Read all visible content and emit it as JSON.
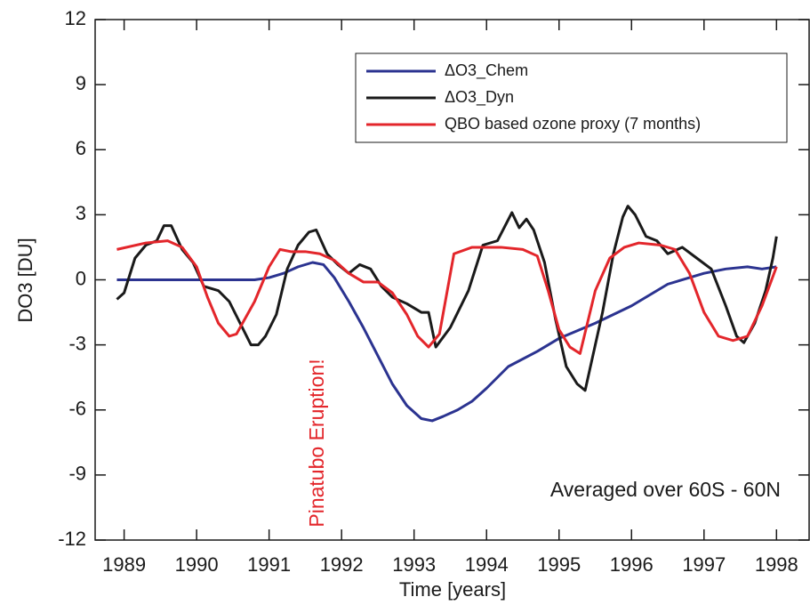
{
  "chart_data": {
    "type": "line",
    "xlabel": "Time [years]",
    "ylabel": "DO3 [DU]",
    "annotations": [
      "Pinatubo Eruption!",
      "Averaged over 60S - 60N"
    ],
    "xlim": [
      1988.6,
      1998.45
    ],
    "xticks": [
      1989,
      1990,
      1991,
      1992,
      1993,
      1994,
      1995,
      1996,
      1997,
      1998
    ],
    "ylim": [
      -12,
      12
    ],
    "yticks": [
      12,
      9,
      6,
      3,
      0,
      -3,
      -6,
      -9,
      -12
    ],
    "legend": "top right",
    "series": [
      {
        "name": "ΔO3_Chem",
        "color": "#2b3390",
        "x": [
          1988.9,
          1989.5,
          1990.0,
          1990.5,
          1990.8,
          1991.0,
          1991.2,
          1991.4,
          1991.6,
          1991.75,
          1991.9,
          1992.1,
          1992.3,
          1992.5,
          1992.7,
          1992.9,
          1993.1,
          1993.25,
          1993.4,
          1993.6,
          1993.8,
          1994.0,
          1994.3,
          1994.7,
          1995.0,
          1995.5,
          1996.0,
          1996.5,
          1997.0,
          1997.3,
          1997.6,
          1997.8,
          1998.0
        ],
        "values": [
          0,
          0,
          0,
          0,
          0,
          0.1,
          0.3,
          0.6,
          0.8,
          0.7,
          0.1,
          -1.0,
          -2.2,
          -3.5,
          -4.8,
          -5.8,
          -6.4,
          -6.5,
          -6.3,
          -6.0,
          -5.6,
          -5.0,
          -4.0,
          -3.3,
          -2.7,
          -2.0,
          -1.2,
          -0.2,
          0.3,
          0.5,
          0.6,
          0.5,
          0.6
        ]
      },
      {
        "name": "ΔO3_Dyn",
        "color": "#1a1a1a",
        "x": [
          1988.9,
          1989.0,
          1989.15,
          1989.3,
          1989.45,
          1989.55,
          1989.65,
          1989.8,
          1989.95,
          1990.1,
          1990.3,
          1990.45,
          1990.6,
          1990.75,
          1990.85,
          1990.95,
          1991.1,
          1991.25,
          1991.4,
          1991.55,
          1991.65,
          1991.8,
          1991.95,
          1992.1,
          1992.25,
          1992.4,
          1992.55,
          1992.7,
          1992.9,
          1993.1,
          1993.2,
          1993.3,
          1993.5,
          1993.75,
          1993.95,
          1994.15,
          1994.35,
          1994.45,
          1994.55,
          1994.65,
          1994.8,
          1994.95,
          1995.1,
          1995.25,
          1995.36,
          1995.6,
          1995.75,
          1995.88,
          1995.95,
          1996.05,
          1996.2,
          1996.35,
          1996.5,
          1996.7,
          1996.9,
          1997.1,
          1997.3,
          1997.45,
          1997.55,
          1997.7,
          1997.85,
          1997.95,
          1998.0
        ],
        "values": [
          -0.9,
          -0.6,
          1.0,
          1.6,
          1.8,
          2.5,
          2.5,
          1.4,
          0.8,
          -0.3,
          -0.5,
          -1.0,
          -2.0,
          -3.0,
          -3.0,
          -2.6,
          -1.6,
          0.5,
          1.6,
          2.2,
          2.3,
          1.2,
          0.7,
          0.3,
          0.7,
          0.5,
          -0.3,
          -0.8,
          -1.1,
          -1.5,
          -1.5,
          -3.1,
          -2.2,
          -0.5,
          1.6,
          1.8,
          3.1,
          2.4,
          2.8,
          2.3,
          0.8,
          -1.8,
          -4.0,
          -4.8,
          -5.1,
          -1.5,
          1.2,
          2.9,
          3.4,
          3.0,
          2.0,
          1.8,
          1.2,
          1.5,
          1.0,
          0.5,
          -1.2,
          -2.6,
          -2.9,
          -2.0,
          -0.5,
          1.0,
          2.0
        ]
      },
      {
        "name": "QBO based ozone proxy (7 months)",
        "color": "#e3262b",
        "x": [
          1988.9,
          1989.3,
          1989.6,
          1989.8,
          1990.0,
          1990.15,
          1990.3,
          1990.45,
          1990.55,
          1990.8,
          1991.0,
          1991.15,
          1991.3,
          1991.5,
          1991.7,
          1991.9,
          1992.1,
          1992.3,
          1992.5,
          1992.7,
          1992.9,
          1993.05,
          1993.2,
          1993.35,
          1993.55,
          1993.8,
          1994.2,
          1994.5,
          1994.7,
          1994.85,
          1995.0,
          1995.15,
          1995.29,
          1995.5,
          1995.7,
          1995.9,
          1996.1,
          1996.4,
          1996.6,
          1996.8,
          1997.0,
          1997.2,
          1997.4,
          1997.6,
          1997.8,
          1998.0
        ],
        "values": [
          1.4,
          1.7,
          1.8,
          1.5,
          0.6,
          -0.8,
          -2.0,
          -2.6,
          -2.5,
          -1.0,
          0.6,
          1.4,
          1.3,
          1.3,
          1.2,
          0.9,
          0.3,
          -0.1,
          -0.1,
          -0.6,
          -1.6,
          -2.6,
          -3.1,
          -2.5,
          1.2,
          1.5,
          1.5,
          1.4,
          1.1,
          -0.5,
          -2.3,
          -3.1,
          -3.4,
          -0.5,
          1.0,
          1.5,
          1.7,
          1.6,
          1.4,
          0.3,
          -1.5,
          -2.6,
          -2.8,
          -2.6,
          -1.2,
          0.6
        ]
      }
    ]
  }
}
